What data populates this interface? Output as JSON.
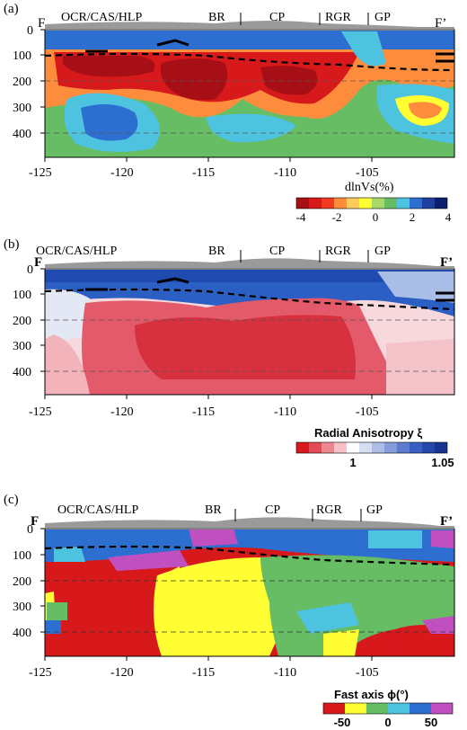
{
  "panels": [
    {
      "label": "(a)",
      "regions": {
        "ocr": "OCR/CAS/HLP",
        "br": "BR",
        "cp": "CP",
        "rgr": "RGR",
        "gp": "GP"
      },
      "end_left": "F",
      "end_right": "F’",
      "xticks": [
        "-125",
        "-120",
        "-115",
        "-110",
        "-105"
      ],
      "yticks": [
        "0",
        "100",
        "200",
        "300",
        "400"
      ],
      "colorbar": {
        "title": "dlnVs(%)",
        "ticks": [
          "-4",
          "-2",
          "0",
          "2",
          "4"
        ]
      }
    },
    {
      "label": "(b)",
      "regions": {
        "ocr": "OCR/CAS/HLP",
        "br": "BR",
        "cp": "CP",
        "rgr": "RGR",
        "gp": "GP"
      },
      "end_left": "F",
      "end_right": "F’",
      "xticks": [
        "-125",
        "-120",
        "-115",
        "-110",
        "-105"
      ],
      "yticks": [
        "0",
        "100",
        "200",
        "300",
        "400"
      ],
      "colorbar": {
        "title": "Radial Anisotropy  ξ",
        "ticks": [
          "1",
          "1.05"
        ]
      }
    },
    {
      "label": "(c)",
      "regions": {
        "ocr": "OCR/CAS/HLP",
        "br": "BR",
        "cp": "CP",
        "rgr": "RGR",
        "gp": "GP"
      },
      "end_left": "F",
      "end_right": "F’",
      "xticks": [
        "-125",
        "-120",
        "-115",
        "-110",
        "-105"
      ],
      "yticks": [
        "0",
        "100",
        "200",
        "300",
        "400"
      ],
      "colorbar": {
        "title": "Fast axis  ϕ(°)",
        "ticks": [
          "-50",
          "0",
          "50"
        ]
      }
    }
  ],
  "colors": {
    "red": "#d7191c",
    "darkred": "#a50f15",
    "orange": "#fd8d3c",
    "yellow": "#ffff33",
    "green": "#66bd63",
    "cyan": "#4dc3e0",
    "blue": "#2c6fd1",
    "darkblue": "#234fb0",
    "magenta": "#c050c0",
    "topo": "#9a9a9a"
  }
}
